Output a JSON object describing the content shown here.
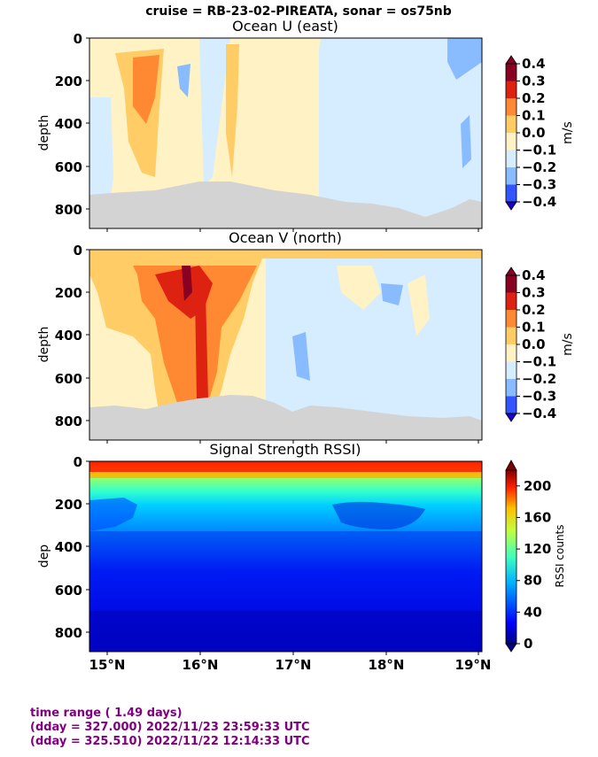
{
  "suptitle": "cruise = RB-23-02-PIREATA,  sonar = os75nb",
  "colors": {
    "velocity_levels": [
      "#1a00cc",
      "#3355ff",
      "#88bbff",
      "#d6ecff",
      "#fff2c4",
      "#ffcc66",
      "#ff8833",
      "#dd2211",
      "#880022"
    ],
    "land": "#d3d3d3"
  },
  "chart_data": [
    {
      "type": "heatmap",
      "title": "Ocean U (east)",
      "ylabel": "depth",
      "yticks": [
        "0",
        "200",
        "400",
        "600",
        "800"
      ],
      "ylim": [
        890,
        0
      ],
      "xlim": [
        14.86,
        19.06
      ],
      "colorbar": {
        "label": "m/s",
        "min": -0.4,
        "max": 0.4,
        "ticks": [
          "0.4",
          "0.3",
          "0.2",
          "0.1",
          "0.0",
          "−0.1",
          "−0.2",
          "−0.3",
          "−0.4"
        ]
      }
    },
    {
      "type": "heatmap",
      "title": "Ocean V (north)",
      "ylabel": "depth",
      "yticks": [
        "0",
        "200",
        "400",
        "600",
        "800"
      ],
      "ylim": [
        890,
        0
      ],
      "xlim": [
        14.86,
        19.06
      ],
      "colorbar": {
        "label": "m/s",
        "min": -0.4,
        "max": 0.4,
        "ticks": [
          "0.4",
          "0.3",
          "0.2",
          "0.1",
          "0.0",
          "−0.1",
          "−0.2",
          "−0.3",
          "−0.4"
        ]
      }
    },
    {
      "type": "heatmap",
      "title": "Signal Strength RSSI)",
      "ylabel": "dep",
      "yticks": [
        "0",
        "200",
        "400",
        "600",
        "800"
      ],
      "ylim": [
        890,
        0
      ],
      "xlim": [
        14.86,
        19.06
      ],
      "xticks": [
        "15°N",
        "16°N",
        "17°N",
        "18°N",
        "19°N"
      ],
      "colorbar": {
        "label": "RSSI counts",
        "min": 0,
        "max": 220,
        "ticks": [
          "200",
          "160",
          "120",
          "80",
          "40",
          "0"
        ]
      }
    }
  ],
  "footer": {
    "line1": "time range ( 1.49 days)",
    "line2": "(dday = 327.000) 2022/11/23 23:59:33 UTC",
    "line3": "(dday = 325.510) 2022/11/22 12:14:33 UTC"
  }
}
